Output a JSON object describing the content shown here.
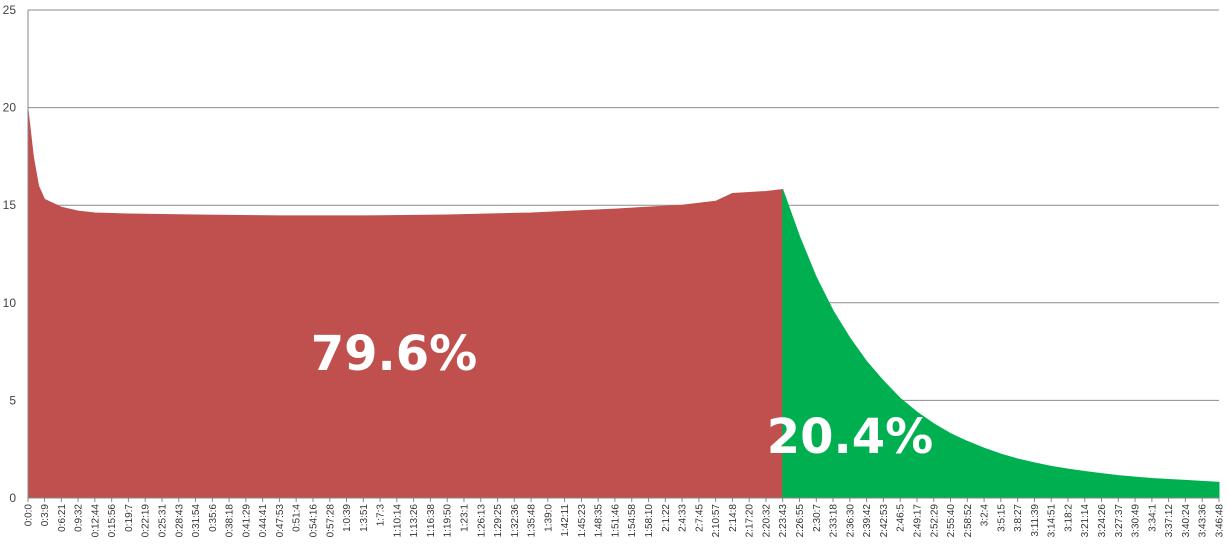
{
  "chart_data": {
    "type": "area",
    "title": "",
    "xlabel": "",
    "ylabel": "",
    "ylim": [
      0,
      25
    ],
    "yticks": [
      0,
      5,
      10,
      15,
      20,
      25
    ],
    "grid": true,
    "legend": "none",
    "x_tick_labels": [
      "0:0:0",
      "0:3:9",
      "0:6:21",
      "0:9:32",
      "0:12:44",
      "0:15:56",
      "0:19:7",
      "0:22:19",
      "0:25:31",
      "0:28:43",
      "0:31:54",
      "0:35:6",
      "0:38:18",
      "0:41:29",
      "0:44:41",
      "0:47:53",
      "0:51:4",
      "0:54:16",
      "0:57:28",
      "1:0:39",
      "1:3:51",
      "1:7:3",
      "1:10:14",
      "1:13:26",
      "1:16:38",
      "1:19:50",
      "1:23:1",
      "1:26:13",
      "1:29:25",
      "1:32:36",
      "1:35:48",
      "1:39:0",
      "1:42:11",
      "1:45:23",
      "1:48:35",
      "1:51:46",
      "1:54:58",
      "1:58:10",
      "2:1:22",
      "2:4:33",
      "2:7:45",
      "2:10:57",
      "2:14:8",
      "2:17:20",
      "2:20:32",
      "2:23:43",
      "2:26:55",
      "2:30:7",
      "2:33:18",
      "2:36:30",
      "2:39:42",
      "2:42:53",
      "2:46:5",
      "2:49:17",
      "2:52:29",
      "2:55:40",
      "2:58:52",
      "3:2:4",
      "3:5:15",
      "3:8:27",
      "3:11:39",
      "3:14:51",
      "3:18:2",
      "3:21:14",
      "3:24:26",
      "3:27:37",
      "3:30:49",
      "3:34:1",
      "3:37:12",
      "3:40:24",
      "3:43:36",
      "3:46:48"
    ],
    "series": [
      {
        "color": "#c0504d",
        "x": [
          "0:0:0",
          "0:1:0",
          "0:2:0",
          "0:3:9",
          "0:6:21",
          "0:9:32",
          "0:12:44",
          "0:19:7",
          "0:31:54",
          "0:47:53",
          "1:3:51",
          "1:19:50",
          "1:35:48",
          "1:51:46",
          "2:4:33",
          "2:10:57",
          "2:14:8",
          "2:17:20",
          "2:20:32",
          "2:23:43"
        ],
        "values": [
          19.9,
          17.5,
          16.0,
          15.3,
          14.9,
          14.7,
          14.6,
          14.55,
          14.5,
          14.45,
          14.45,
          14.5,
          14.6,
          14.8,
          15.0,
          15.2,
          15.6,
          15.65,
          15.7,
          15.8
        ]
      },
      {
        "color": "#00b050",
        "x": [
          "2:23:43",
          "2:26:55",
          "2:30:7",
          "2:33:18",
          "2:36:30",
          "2:39:42",
          "2:42:53",
          "2:46:5",
          "2:49:17",
          "2:52:29",
          "2:55:40",
          "2:58:52",
          "3:2:4",
          "3:5:15",
          "3:8:27",
          "3:11:39",
          "3:14:51",
          "3:18:2",
          "3:21:14",
          "3:24:26",
          "3:27:37",
          "3:30:49",
          "3:34:1",
          "3:37:12",
          "3:40:24",
          "3:43:36",
          "3:46:48"
        ],
        "values": [
          15.8,
          13.4,
          11.3,
          9.6,
          8.2,
          7.0,
          6.0,
          5.1,
          4.4,
          3.8,
          3.3,
          2.9,
          2.55,
          2.25,
          2.0,
          1.8,
          1.62,
          1.48,
          1.36,
          1.25,
          1.15,
          1.07,
          1.0,
          0.95,
          0.9,
          0.85,
          0.8
        ]
      }
    ],
    "annotations": [
      {
        "text": "79.6%",
        "series": 0
      },
      {
        "text": "20.4%",
        "series": 1
      }
    ]
  }
}
